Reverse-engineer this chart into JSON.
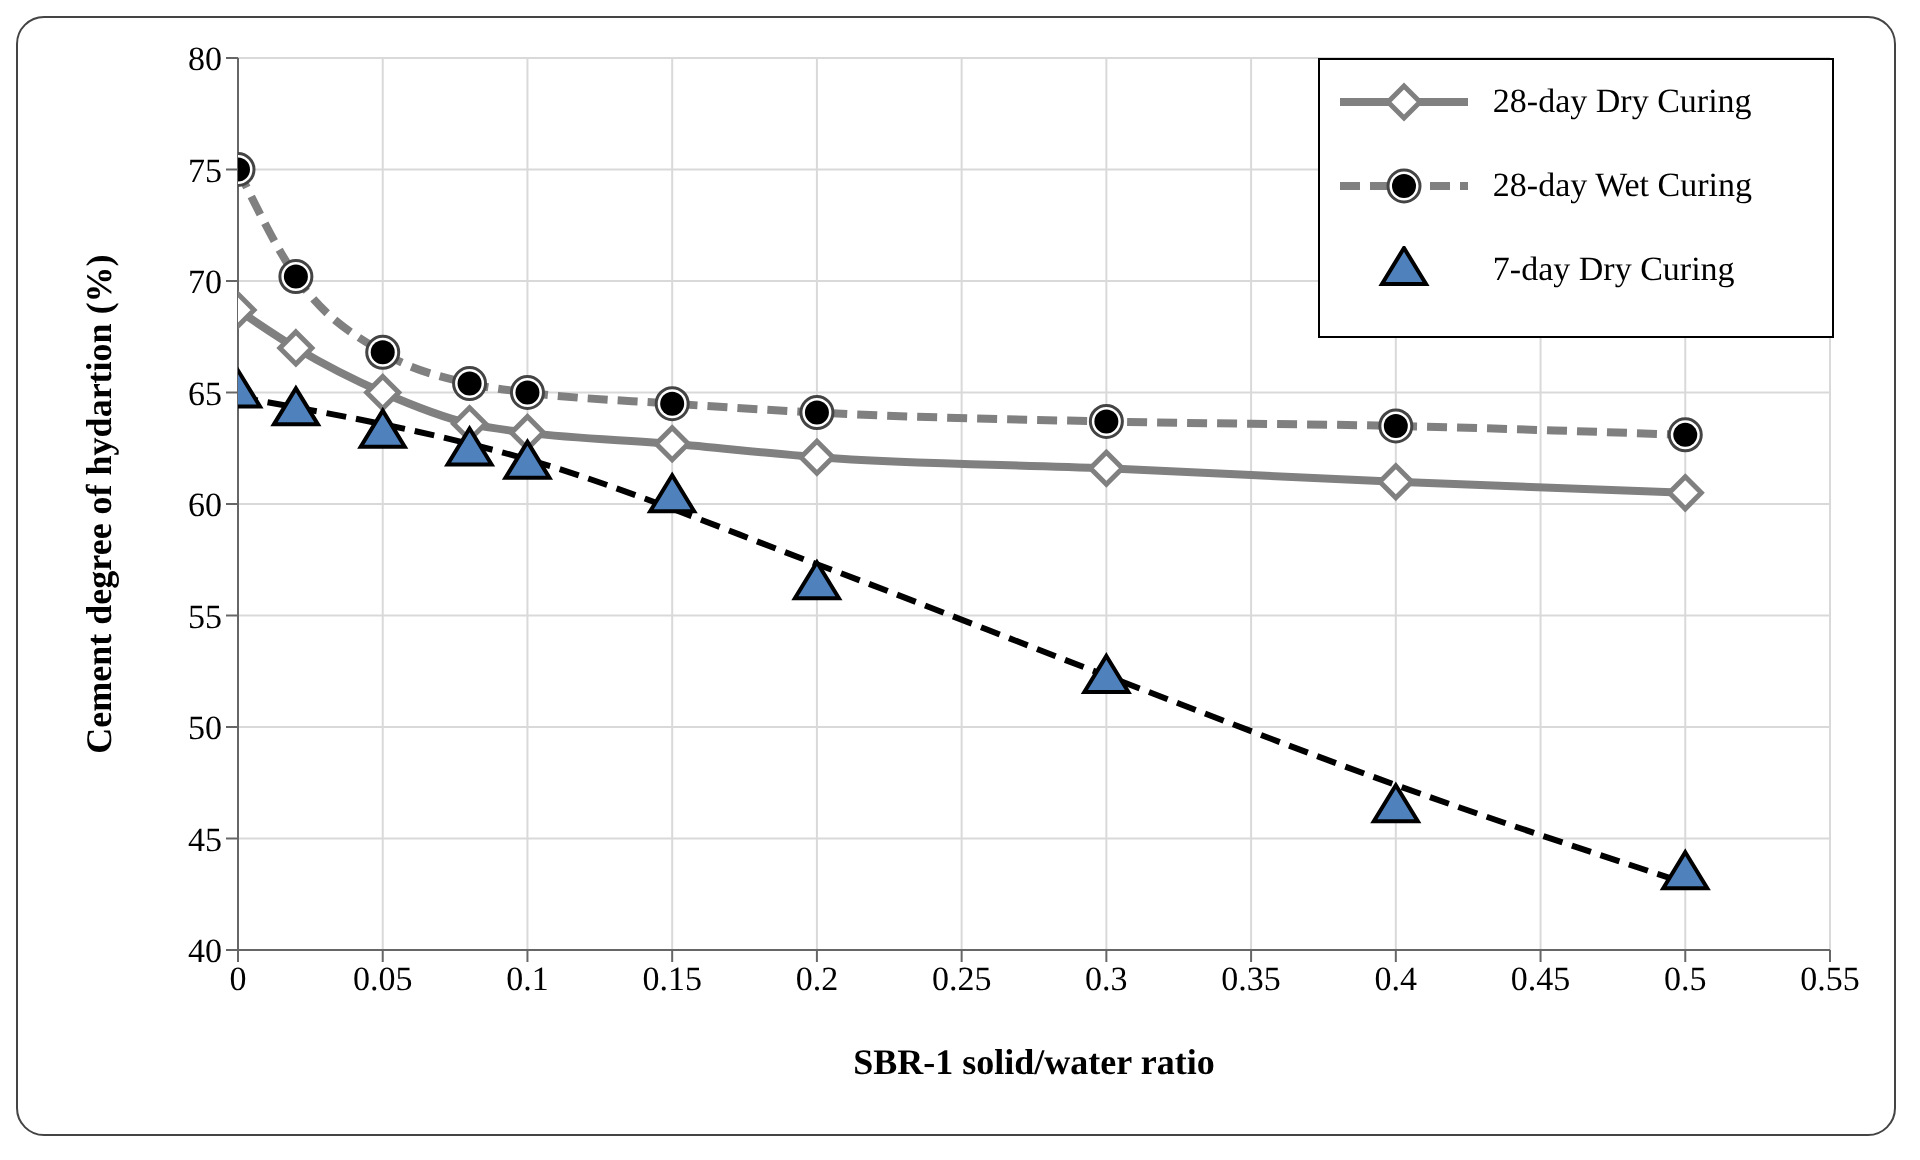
{
  "chart_data": {
    "type": "line",
    "xlabel": "SBR-1 solid/water ratio",
    "ylabel": "Cement degree of hydartion  (%)",
    "x": [
      0,
      0.02,
      0.05,
      0.08,
      0.1,
      0.15,
      0.2,
      0.3,
      0.4,
      0.5
    ],
    "series": [
      {
        "name": "28-day Dry Curing",
        "color": "#808080",
        "marker": "diamond",
        "line_style": "solid",
        "values": [
          68.7,
          67.0,
          65.0,
          63.6,
          63.2,
          62.7,
          62.1,
          61.6,
          61.0,
          60.5
        ]
      },
      {
        "name": "28-day Wet Curing",
        "color": "#808080",
        "marker": "circle",
        "line_style": "dashed",
        "values": [
          75.0,
          70.2,
          66.8,
          65.4,
          65.0,
          64.5,
          64.1,
          63.7,
          63.5,
          63.1
        ]
      },
      {
        "name": "7-day Dry Curing",
        "type": "scatter",
        "color": "#4f81bd",
        "marker": "triangle",
        "values": [
          65.0,
          64.2,
          63.2,
          62.4,
          61.8,
          60.3,
          56.4,
          52.2,
          46.4,
          43.4
        ]
      },
      {
        "color": "#000000",
        "marker": "none",
        "line_style": "dashed",
        "x": [
          0,
          0.1,
          0.2,
          0.3,
          0.4,
          0.5
        ],
        "values": [
          64.8,
          62.0,
          57.3,
          52.3,
          47.4,
          43.0
        ]
      }
    ],
    "xlim": [
      0,
      0.55
    ],
    "xticks": [
      0,
      0.05,
      0.1,
      0.15,
      0.2,
      0.25,
      0.3,
      0.35,
      0.4,
      0.45,
      0.5,
      0.55
    ],
    "ylim": [
      40,
      80
    ],
    "yticks": [
      40,
      45,
      50,
      55,
      60,
      65,
      70,
      75,
      80
    ],
    "grid": true,
    "legend": "top right"
  }
}
